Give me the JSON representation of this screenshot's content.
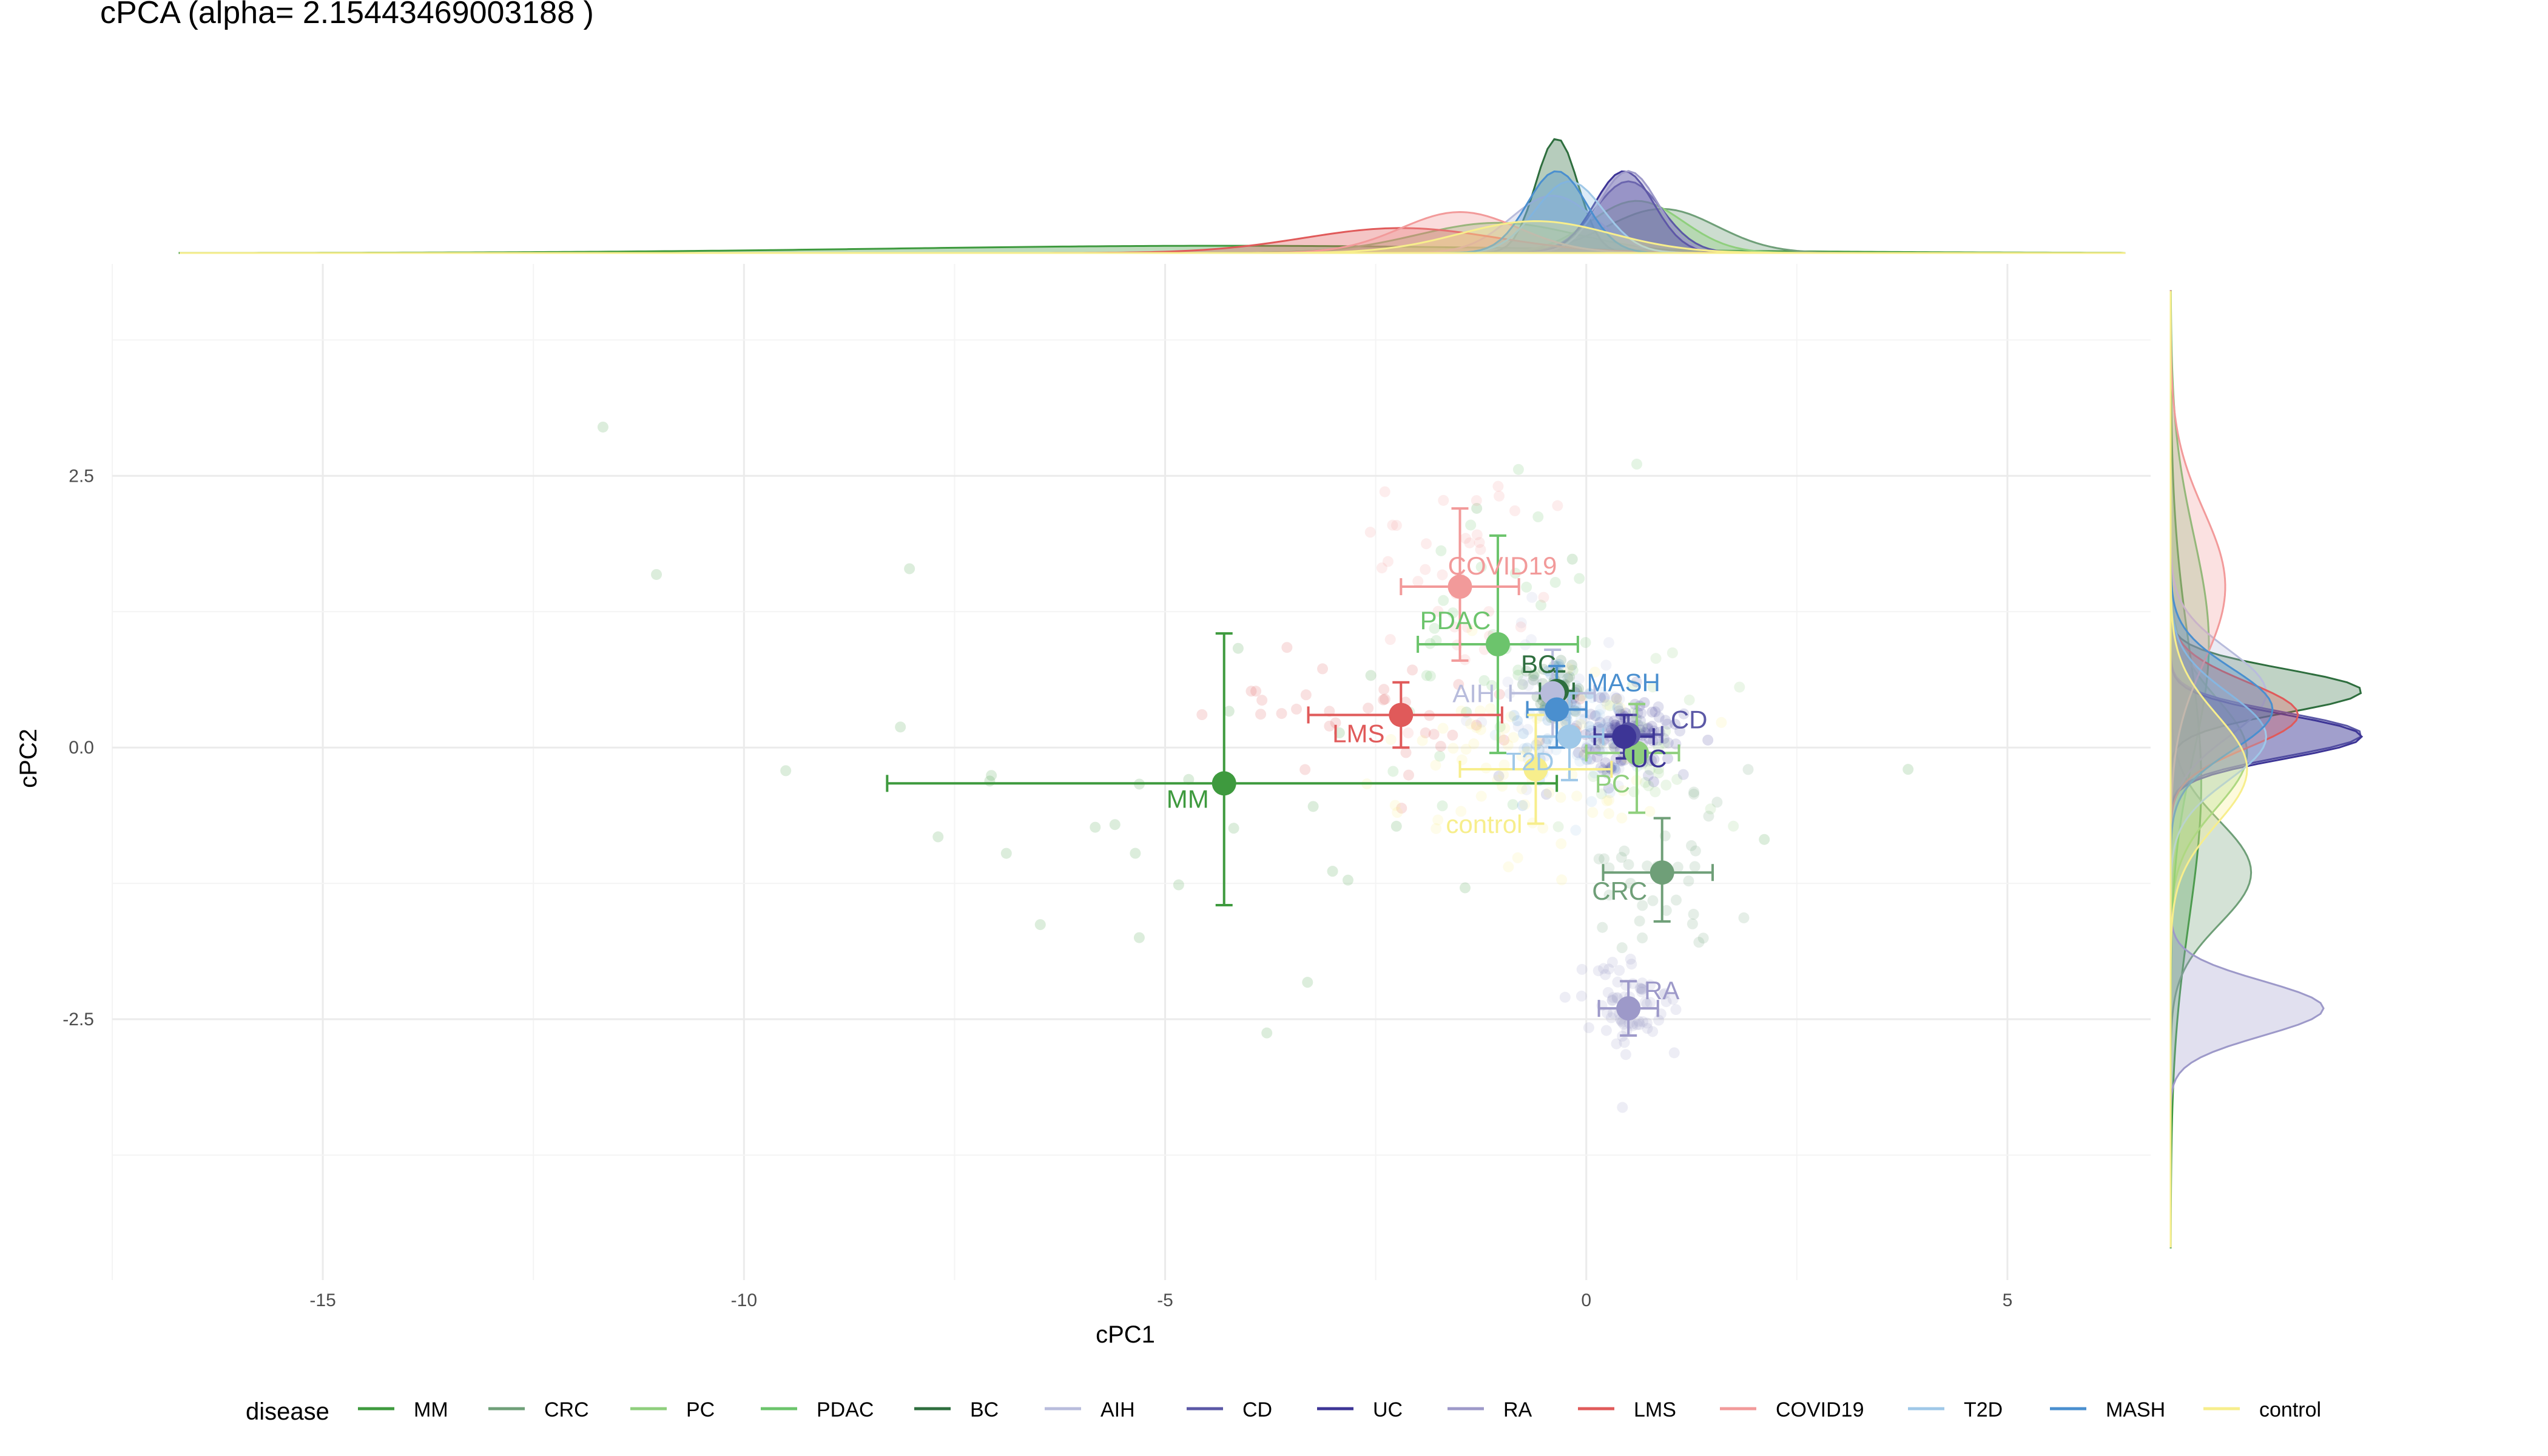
{
  "chart_data": {
    "type": "scatter",
    "title": "cPCA (alpha= 2.15443469003188 )",
    "xlabel": "cPC1",
    "ylabel": "cPC2",
    "xlim": [
      -17.5,
      6.7
    ],
    "ylim": [
      -4.9,
      4.45
    ],
    "x_ticks": [
      -15,
      -10,
      -5,
      0,
      5
    ],
    "y_ticks": [
      2.5,
      0.0,
      -2.5
    ],
    "x_tick_labels": [
      "-15",
      "-10",
      "-5",
      "0",
      "5"
    ],
    "y_tick_labels": [
      "2.5",
      "0.0",
      "-2.5"
    ],
    "grid": true,
    "legend_title": "disease",
    "legend_position": "bottom",
    "marginal_densities": {
      "top": true,
      "right": true
    },
    "series": [
      {
        "name": "MM",
        "color": "#3e9a3e",
        "centroid": {
          "x": -4.3,
          "y": -0.33
        },
        "error_x": [
          -8.3,
          -0.35
        ],
        "error_y": [
          -1.45,
          1.05
        ],
        "label": "MM"
      },
      {
        "name": "CRC",
        "color": "#6f9f78",
        "centroid": {
          "x": 0.9,
          "y": -1.15
        },
        "error_x": [
          0.2,
          1.5
        ],
        "error_y": [
          -1.6,
          -0.65
        ],
        "label": "CRC"
      },
      {
        "name": "PC",
        "color": "#8fcf7d",
        "centroid": {
          "x": 0.6,
          "y": -0.05
        },
        "error_x": [
          0.0,
          1.1
        ],
        "error_y": [
          -0.6,
          0.4
        ],
        "label": "PC"
      },
      {
        "name": "PDAC",
        "color": "#6cc46c",
        "centroid": {
          "x": -1.05,
          "y": 0.95
        },
        "error_x": [
          -2.0,
          -0.1
        ],
        "error_y": [
          -0.05,
          1.95
        ],
        "label": "PDAC"
      },
      {
        "name": "BC",
        "color": "#2e6e3e",
        "centroid": {
          "x": -0.35,
          "y": 0.52
        },
        "error_x": [
          -0.55,
          -0.15
        ],
        "error_y": [
          0.35,
          0.7
        ],
        "label": "BC"
      },
      {
        "name": "AIH",
        "color": "#b8bcdc",
        "centroid": {
          "x": -0.4,
          "y": 0.5
        },
        "error_x": [
          -0.9,
          0.1
        ],
        "error_y": [
          0.1,
          0.9
        ],
        "label": "AIH"
      },
      {
        "name": "CD",
        "color": "#5b58a6",
        "centroid": {
          "x": 0.5,
          "y": 0.12
        },
        "error_x": [
          0.1,
          0.9
        ],
        "error_y": [
          -0.05,
          0.3
        ],
        "label": "CD"
      },
      {
        "name": "UC",
        "color": "#3d3596",
        "centroid": {
          "x": 0.45,
          "y": 0.1
        },
        "error_x": [
          0.1,
          0.8
        ],
        "error_y": [
          -0.1,
          0.3
        ],
        "label": "UC"
      },
      {
        "name": "RA",
        "color": "#9d99c9",
        "centroid": {
          "x": 0.5,
          "y": -2.4
        },
        "error_x": [
          0.15,
          0.85
        ],
        "error_y": [
          -2.65,
          -2.15
        ],
        "label": "RA"
      },
      {
        "name": "LMS",
        "color": "#e05a5a",
        "centroid": {
          "x": -2.2,
          "y": 0.3
        },
        "error_x": [
          -3.3,
          -1.0
        ],
        "error_y": [
          0.0,
          0.6
        ],
        "label": "LMS"
      },
      {
        "name": "COVID19",
        "color": "#f29a9a",
        "centroid": {
          "x": -1.5,
          "y": 1.48
        },
        "error_x": [
          -2.2,
          -0.8
        ],
        "error_y": [
          0.8,
          2.2
        ],
        "label": "COVID19"
      },
      {
        "name": "T2D",
        "color": "#9fc8e8",
        "centroid": {
          "x": -0.2,
          "y": 0.1
        },
        "error_x": [
          -0.6,
          0.2
        ],
        "error_y": [
          -0.3,
          0.5
        ],
        "label": "T2D"
      },
      {
        "name": "MASH",
        "color": "#4a8fcf",
        "centroid": {
          "x": -0.35,
          "y": 0.35
        },
        "error_x": [
          -0.7,
          0.0
        ],
        "error_y": [
          0.0,
          0.75
        ],
        "label": "MASH"
      },
      {
        "name": "control",
        "color": "#f7ee8c",
        "centroid": {
          "x": -0.6,
          "y": -0.2
        },
        "error_x": [
          -1.5,
          0.3
        ],
        "error_y": [
          -0.7,
          0.3
        ],
        "label": "control"
      }
    ]
  }
}
